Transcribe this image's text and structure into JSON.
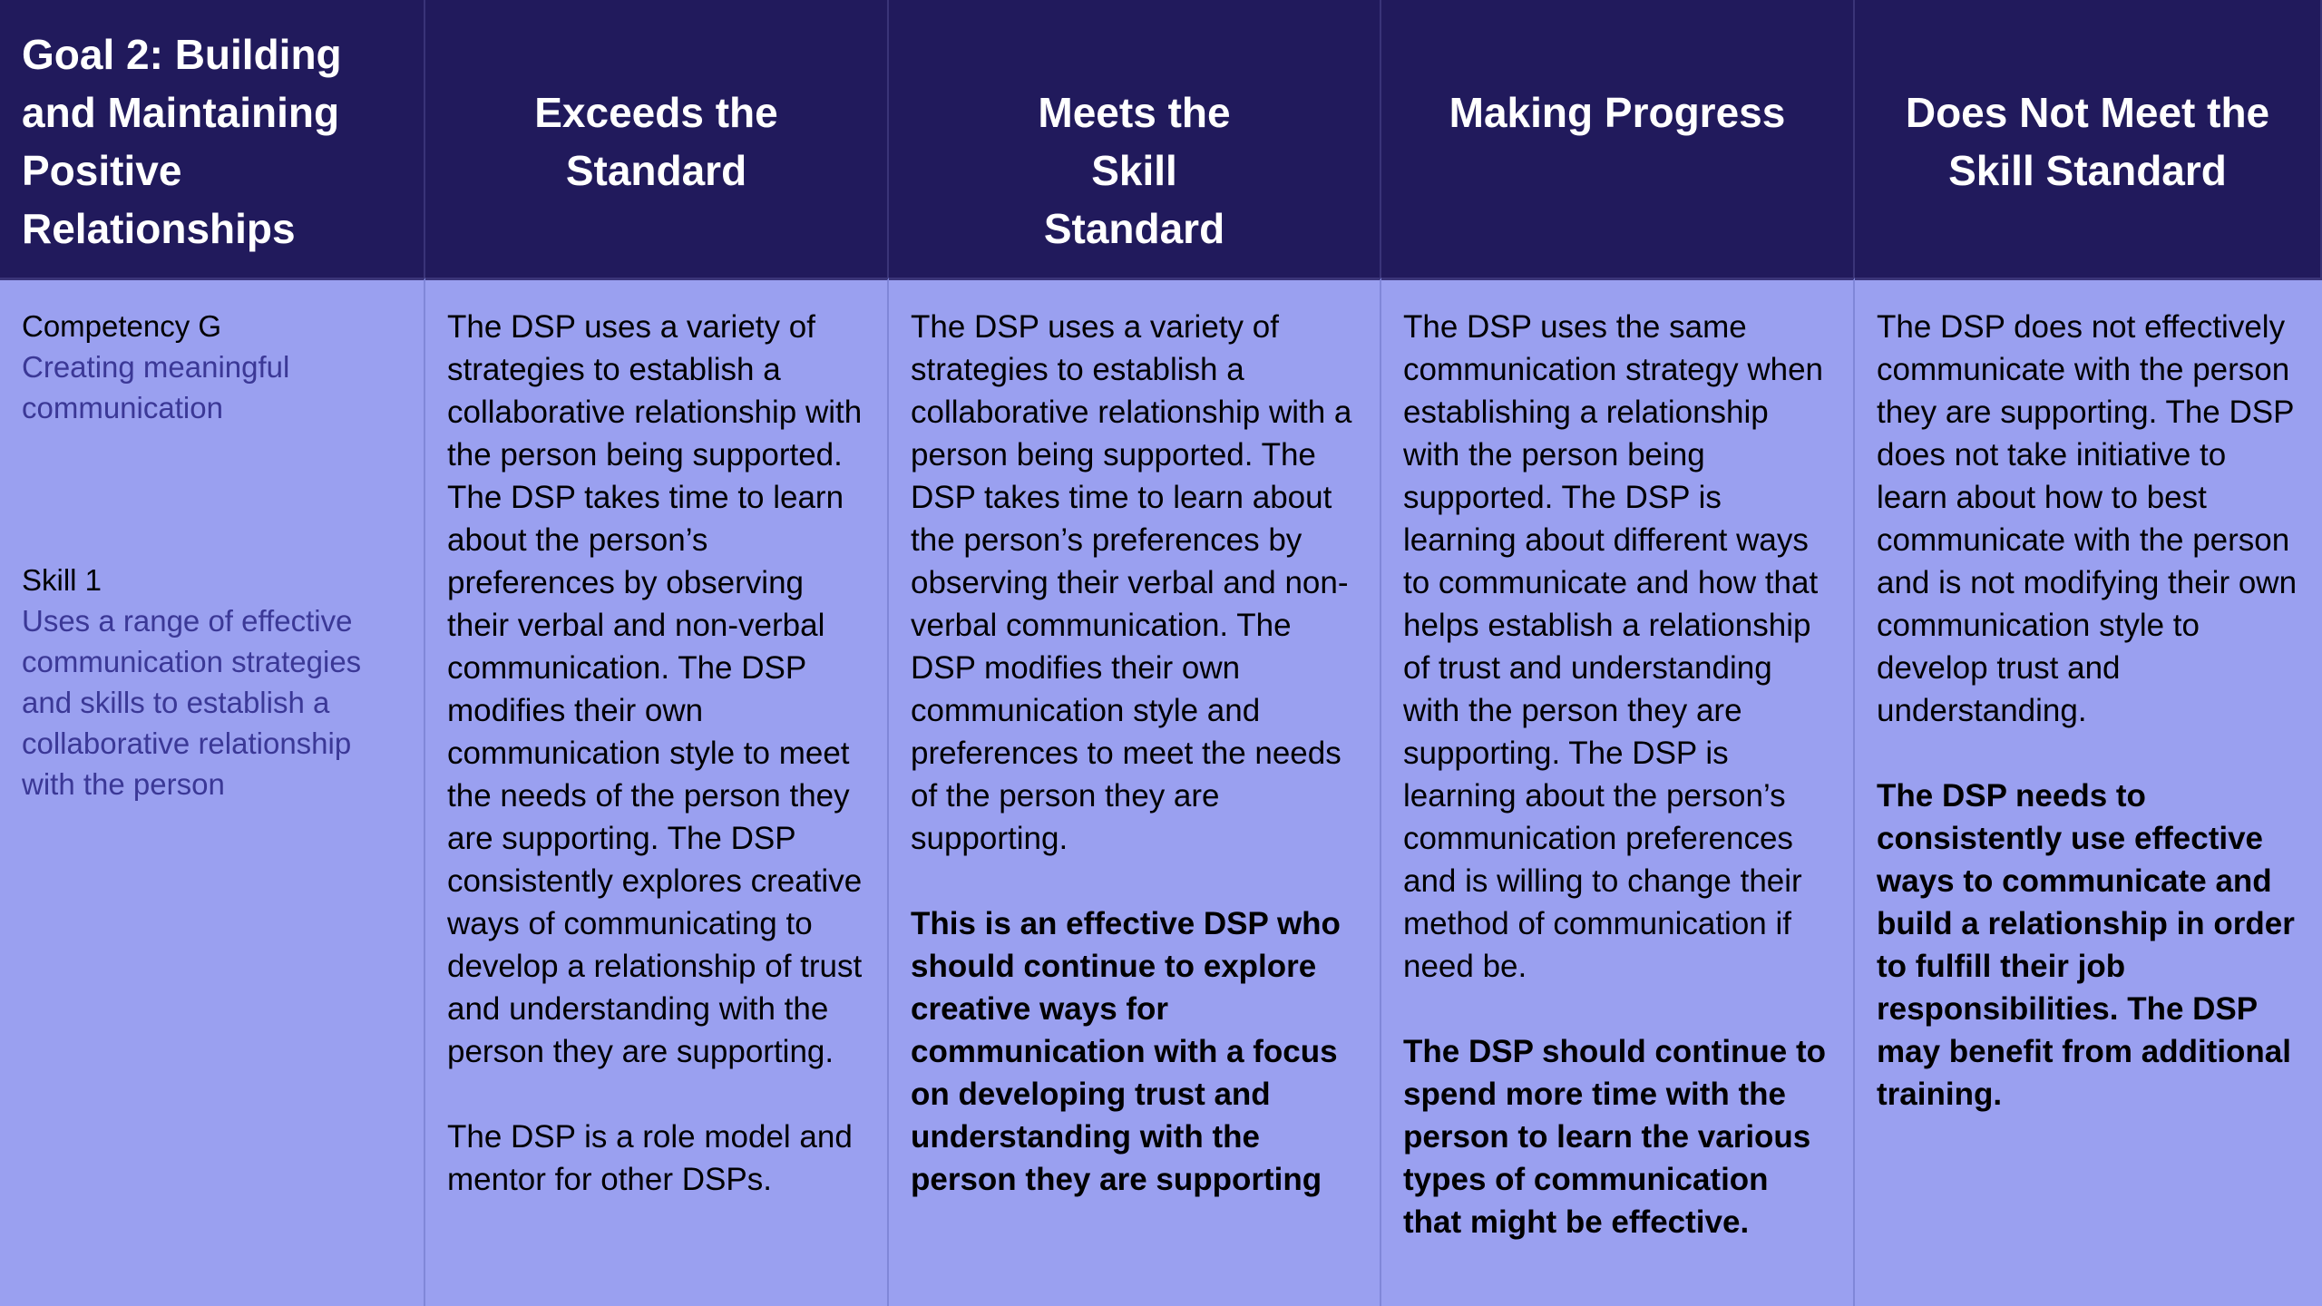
{
  "headers": {
    "goal": "Goal 2: Building and Maintaining Positive Relationships",
    "exceeds": "Exceeds the\nStandard",
    "meets": "Meets the\nSkill\nStandard",
    "progress": "Making Progress",
    "not_meet": "Does Not Meet the\nSkill Standard"
  },
  "competency": {
    "label": "Competency G",
    "text": "Creating meaningful communication"
  },
  "skill": {
    "label": "Skill 1",
    "text": "Uses a range of effective communication strategies and skills to establish a collaborative relationship with the person"
  },
  "exceeds": {
    "body": "The DSP uses a variety of strategies to establish a collaborative relationship with the person being supported. The DSP takes time to learn about the person’s preferences by observing their verbal and non-verbal communication. The DSP modifies their own communication style to meet the needs of the person they are supporting. The DSP consistently explores creative ways of communicating to develop a relationship of trust and understanding with the person they are supporting.",
    "extra": " The DSP is a role model and mentor for other DSPs."
  },
  "meets": {
    "body": "The DSP uses a variety of strategies to establish a collaborative relationship with a person being supported. The DSP takes time to learn about the person’s preferences by observing their verbal and non-verbal communication. The DSP modifies their own communication style and preferences to meet the needs of the person they are supporting.",
    "bold": "This is an effective DSP who should continue to explore creative ways for communication with a focus on developing trust and understanding with the person they are supporting"
  },
  "progress": {
    "body": "The DSP uses the same communication strategy when establishing a relationship with the person being supported.  The DSP is learning about different ways to communicate and how that helps establish a relationship of trust and understanding with the person they are supporting. The DSP is learning about the person’s communication preferences and is willing to change their method of communication if need be.",
    "bold": "The DSP should continue to spend more time with the person to learn the various types of communication that might be effective."
  },
  "not_meet": {
    "body": "The DSP does not effectively communicate with the person they are supporting. The DSP does not take initiative to learn about how to best communicate with the person and is not modifying their own communication style to develop trust and understanding.",
    "bold": "The DSP needs to consistently use effective ways to communicate and build a relationship in order to fulfill their job responsibilities.  The DSP may benefit from additional training."
  }
}
